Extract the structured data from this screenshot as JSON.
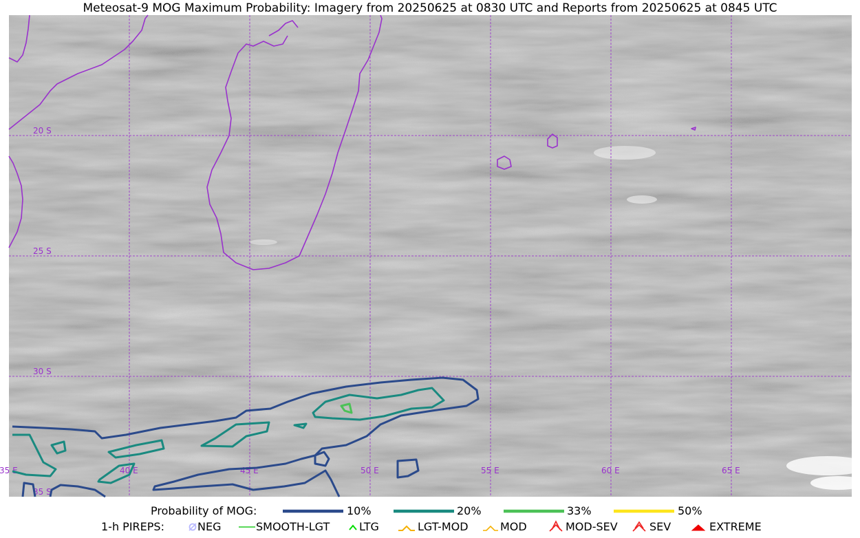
{
  "title": "Meteosat-9 MOG Maximum Probability: Imagery from 20250625 at 0830 UTC and Reports from 20250625 at 0845 UTC",
  "map": {
    "lon_range": [
      35,
      70
    ],
    "lat_range": [
      -15,
      -35
    ],
    "lat_labels": [
      "20 S",
      "25 S",
      "30 S",
      "35 S"
    ],
    "lon_labels": [
      "35 E",
      "40 E",
      "45 E",
      "50 E",
      "55 E",
      "60 E",
      "65 E"
    ],
    "coastline_color": "#9932cc",
    "grid_color": "#9932cc"
  },
  "legend": {
    "probability": {
      "label": "Probability of MOG:",
      "items": [
        {
          "label": "10%",
          "color": "#2b4a8b"
        },
        {
          "label": "20%",
          "color": "#1a8a80"
        },
        {
          "label": "33%",
          "color": "#4cc157"
        },
        {
          "label": "50%",
          "color": "#fde51c"
        }
      ]
    },
    "pireps": {
      "label": "1-h PIREPS:",
      "items": [
        {
          "label": "NEG",
          "icon": "neg-icon",
          "color": "#b8b8ff"
        },
        {
          "label": "SMOOTH-LGT",
          "icon": "line-icon",
          "color": "#22cc22"
        },
        {
          "label": "LTG",
          "icon": "chevron-icon",
          "color": "#00dd00"
        },
        {
          "label": "LGT-MOD",
          "icon": "hat-icon",
          "color": "#f5b000"
        },
        {
          "label": "MOD",
          "icon": "chevron-icon",
          "color": "#f5b000"
        },
        {
          "label": "MOD-SEV",
          "icon": "double-hat-icon",
          "color": "#ee2222"
        },
        {
          "label": "SEV",
          "icon": "double-chevron-icon",
          "color": "#ee2222"
        },
        {
          "label": "EXTREME",
          "icon": "filled-hat-icon",
          "color": "#ee0000"
        }
      ]
    }
  }
}
